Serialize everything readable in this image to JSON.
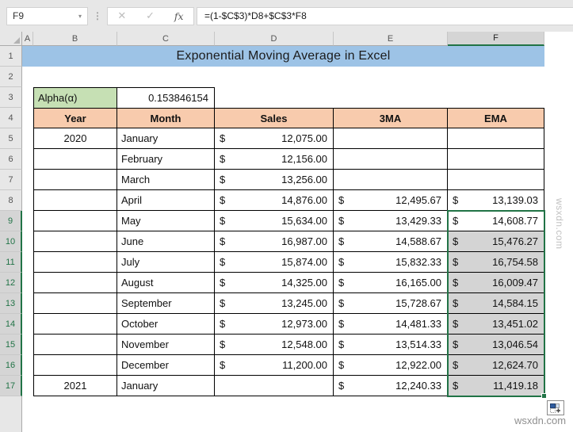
{
  "formula_bar": {
    "cell_reference": "F9",
    "formula": "=(1-$C$3)*D8+$C$3*F8",
    "cancel_icon": "✕",
    "enter_icon": "✓",
    "fx_icon": "fx",
    "dropdown_icon": "▾",
    "separator_icon": "⋮"
  },
  "sheet": {
    "column_headers": [
      "A",
      "B",
      "C",
      "D",
      "E",
      "F"
    ],
    "selected_column": "F",
    "row_numbers": [
      "1",
      "2",
      "3",
      "4",
      "5",
      "6",
      "7",
      "8",
      "9",
      "10",
      "11",
      "12",
      "13",
      "14",
      "15",
      "16",
      "17"
    ],
    "selected_rows_start": 9,
    "title": "Exponential Moving Average in Excel",
    "alpha_label": "Alpha(α)",
    "alpha_value": "0.153846154"
  },
  "table": {
    "headers": [
      "Year",
      "Month",
      "Sales",
      "3MA",
      "EMA"
    ],
    "currency_symbol": "$",
    "rows": [
      {
        "n": 5,
        "year": "2020",
        "month": "January",
        "sales": "12,075.00",
        "ma3": "",
        "ema": ""
      },
      {
        "n": 6,
        "year": "",
        "month": "February",
        "sales": "12,156.00",
        "ma3": "",
        "ema": ""
      },
      {
        "n": 7,
        "year": "",
        "month": "March",
        "sales": "13,256.00",
        "ma3": "",
        "ema": ""
      },
      {
        "n": 8,
        "year": "",
        "month": "April",
        "sales": "14,876.00",
        "ma3": "12,495.67",
        "ema": "13,139.03"
      },
      {
        "n": 9,
        "year": "",
        "month": "May",
        "sales": "15,634.00",
        "ma3": "13,429.33",
        "ema": "14,608.77"
      },
      {
        "n": 10,
        "year": "",
        "month": "June",
        "sales": "16,987.00",
        "ma3": "14,588.67",
        "ema": "15,476.27"
      },
      {
        "n": 11,
        "year": "",
        "month": "July",
        "sales": "15,874.00",
        "ma3": "15,832.33",
        "ema": "16,754.58"
      },
      {
        "n": 12,
        "year": "",
        "month": "August",
        "sales": "14,325.00",
        "ma3": "16,165.00",
        "ema": "16,009.47"
      },
      {
        "n": 13,
        "year": "",
        "month": "September",
        "sales": "13,245.00",
        "ma3": "15,728.67",
        "ema": "14,584.15"
      },
      {
        "n": 14,
        "year": "",
        "month": "October",
        "sales": "12,973.00",
        "ma3": "14,481.33",
        "ema": "13,451.02"
      },
      {
        "n": 15,
        "year": "",
        "month": "November",
        "sales": "12,548.00",
        "ma3": "13,514.33",
        "ema": "13,046.54"
      },
      {
        "n": 16,
        "year": "",
        "month": "December",
        "sales": "11,200.00",
        "ma3": "12,922.00",
        "ema": "12,624.70"
      },
      {
        "n": 17,
        "year": "2021",
        "month": "January",
        "sales": "",
        "ma3": "12,240.33",
        "ema": "11,419.18"
      }
    ]
  },
  "selection": {
    "active_cell": "F9",
    "range": "F9:F17"
  },
  "watermark": "wsxdn.com",
  "colors": {
    "title_fill": "#9DC3E6",
    "alpha_fill": "#C6E0B4",
    "header_fill": "#F8CBAD",
    "selection_fill": "#D4D4D4",
    "excel_green": "#217346"
  }
}
